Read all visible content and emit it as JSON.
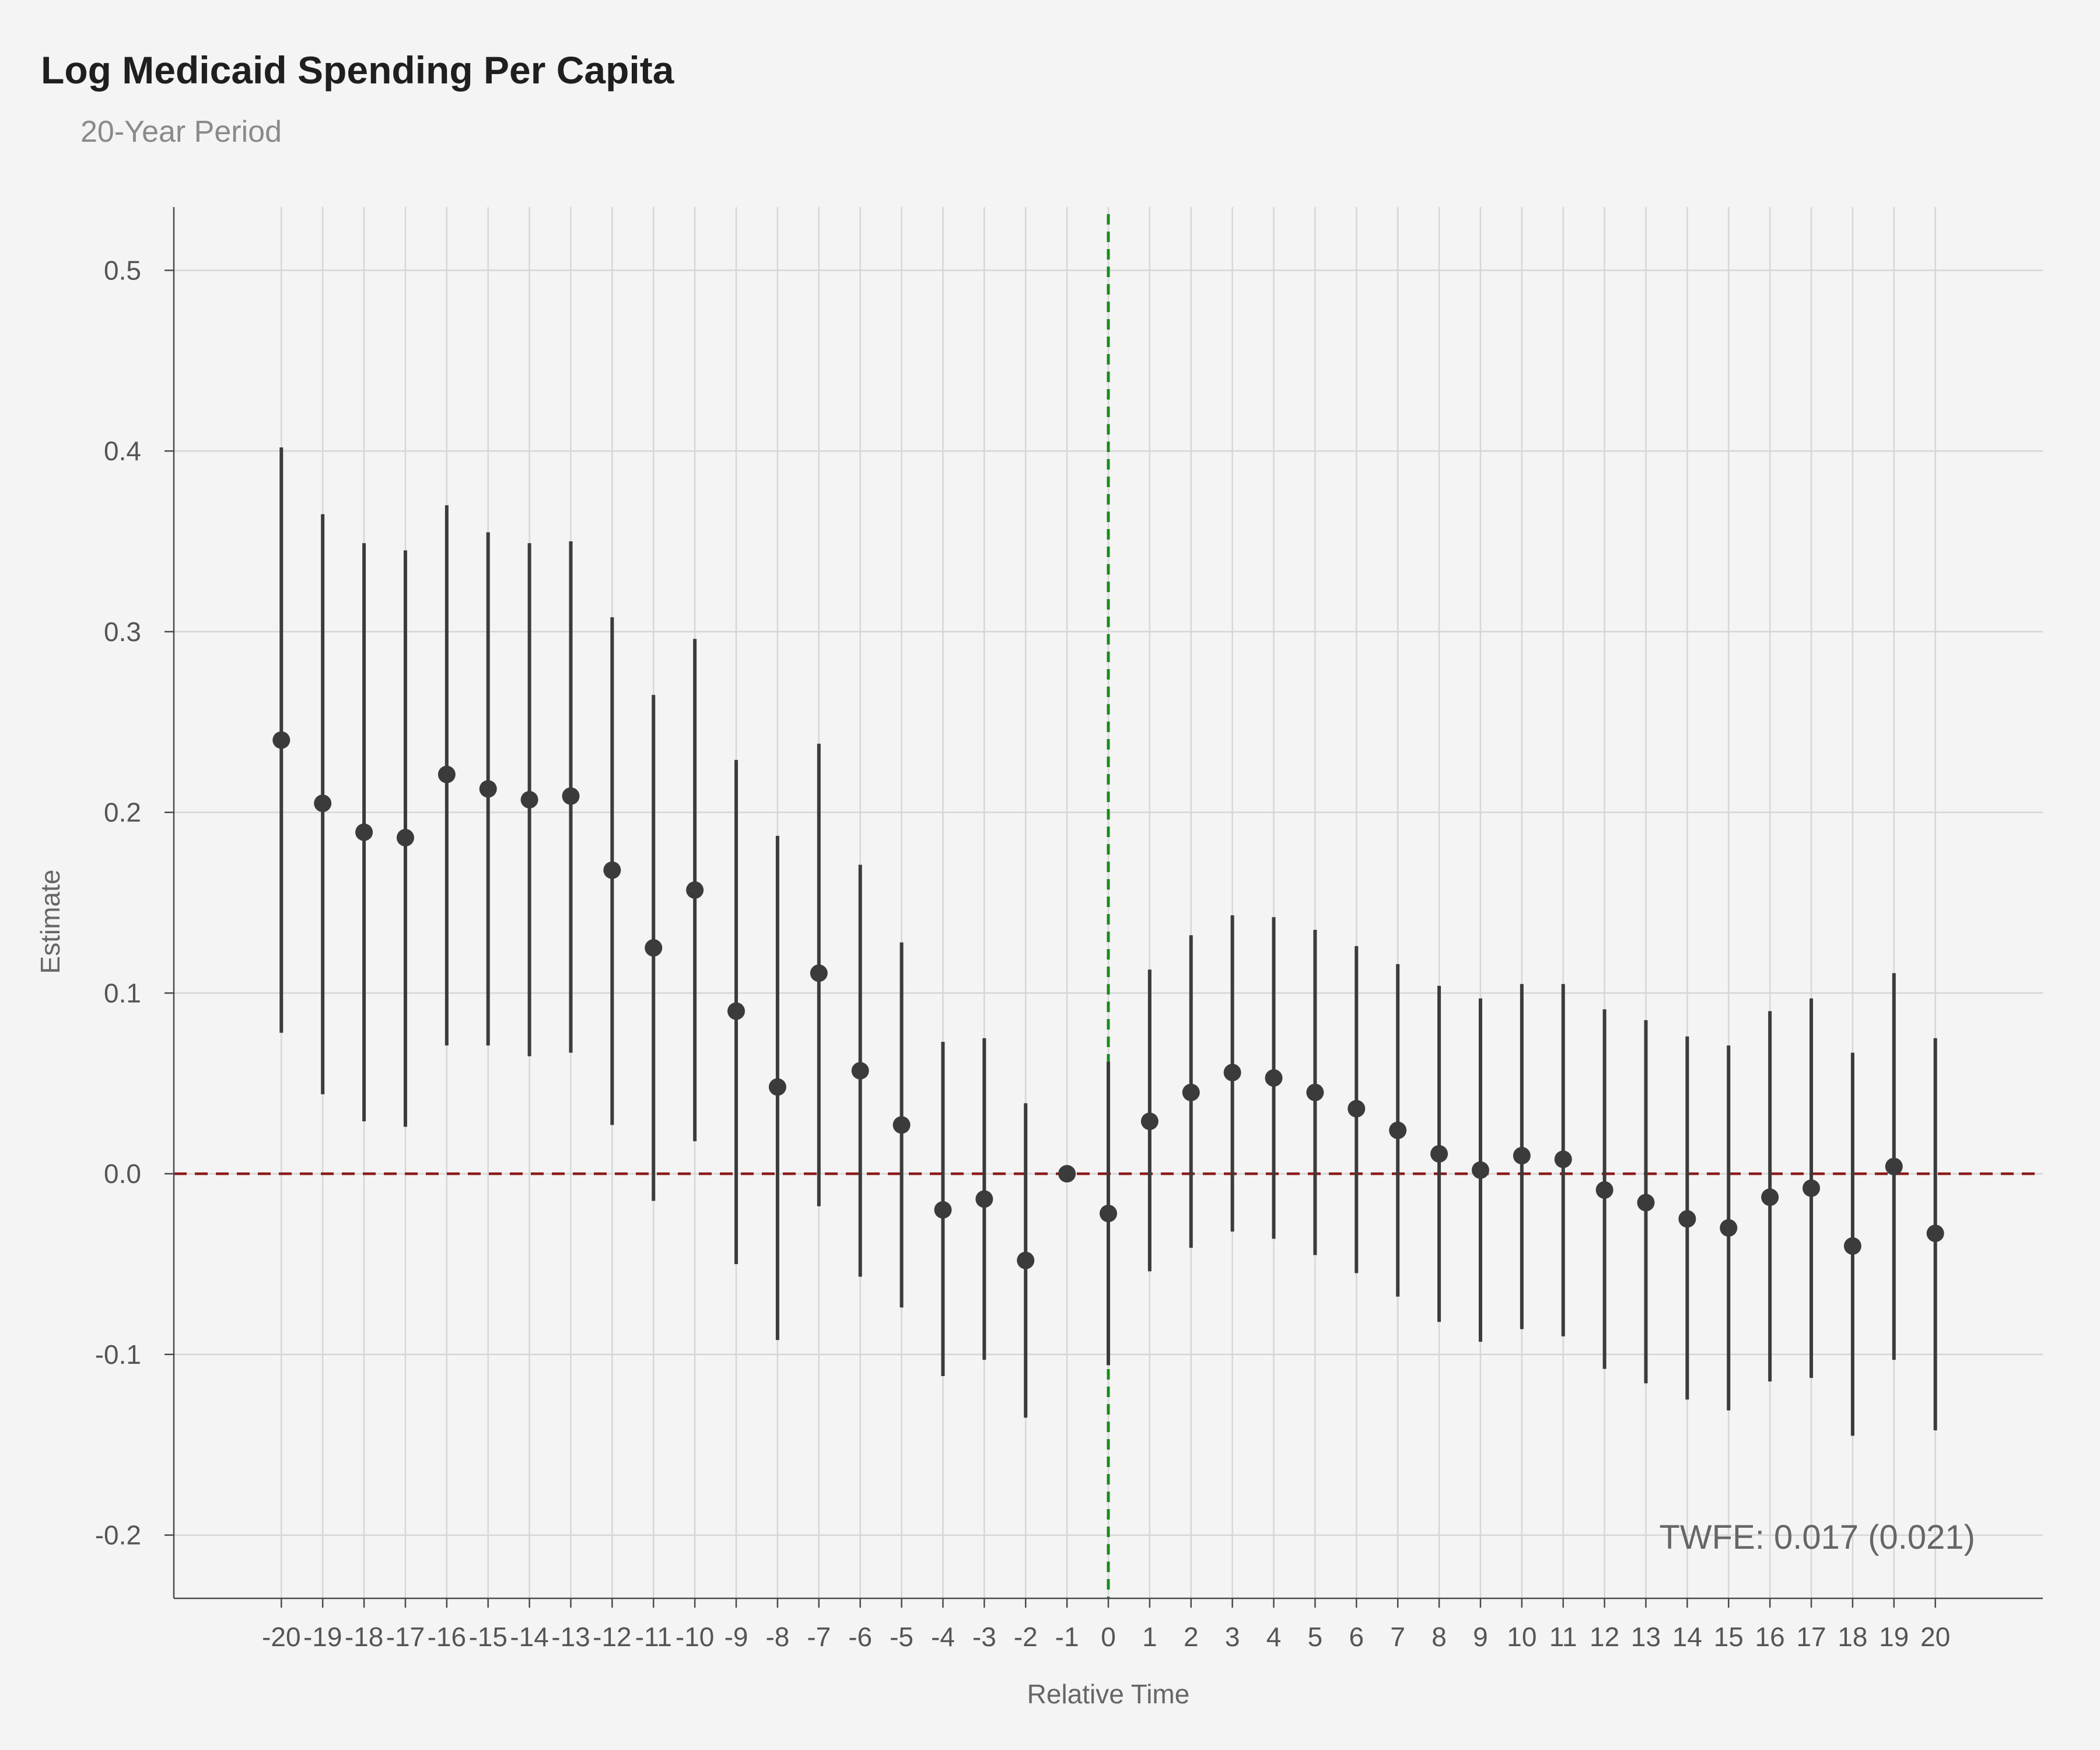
{
  "chart_data": {
    "type": "scatter",
    "title": "Log Medicaid Spending Per Capita",
    "subtitle": "20-Year Period",
    "xlabel": "Relative Time",
    "ylabel": "Estimate",
    "ylim": [
      -0.235,
      0.535
    ],
    "xlim": [
      -22.6,
      22.6
    ],
    "y_ticks": [
      -0.2,
      -0.1,
      0.0,
      0.1,
      0.2,
      0.3,
      0.4,
      0.5
    ],
    "y_tick_labels": [
      "-0.2",
      "-0.1",
      "0.0",
      "0.1",
      "0.2",
      "0.3",
      "0.4",
      "0.5"
    ],
    "x_ticks": [
      -20,
      -19,
      -18,
      -17,
      -16,
      -15,
      -14,
      -13,
      -12,
      -11,
      -10,
      -9,
      -8,
      -7,
      -6,
      -5,
      -4,
      -3,
      -2,
      -1,
      0,
      1,
      2,
      3,
      4,
      5,
      6,
      7,
      8,
      9,
      10,
      11,
      12,
      13,
      14,
      15,
      16,
      17,
      18,
      19,
      20
    ],
    "x_tick_labels": [
      "-20",
      "-19",
      "-18",
      "-17",
      "-16",
      "-15",
      "-14",
      "-13",
      "-12",
      "-11",
      "-10",
      "-9",
      "-8",
      "-7",
      "-6",
      "-5",
      "-4",
      "-3",
      "-2",
      "-1",
      "0",
      "1",
      "2",
      "3",
      "4",
      "5",
      "6",
      "7",
      "8",
      "9",
      "10",
      "11",
      "12",
      "13",
      "14",
      "15",
      "16",
      "17",
      "18",
      "19",
      "20"
    ],
    "grid": true,
    "series": [
      {
        "x": [
          -20,
          -19,
          -18,
          -17,
          -16,
          -15,
          -14,
          -13,
          -12,
          -11,
          -10,
          -9,
          -8,
          -7,
          -6,
          -5,
          -4,
          -3,
          -2,
          -1,
          0,
          1,
          2,
          3,
          4,
          5,
          6,
          7,
          8,
          9,
          10,
          11,
          12,
          13,
          14,
          15,
          16,
          17,
          18,
          19,
          20
        ],
        "estimate": [
          0.24,
          0.205,
          0.189,
          0.186,
          0.221,
          0.213,
          0.207,
          0.209,
          0.168,
          0.125,
          0.157,
          0.09,
          0.048,
          0.111,
          0.057,
          0.027,
          -0.02,
          -0.014,
          -0.048,
          0.0,
          -0.022,
          0.029,
          0.045,
          0.056,
          0.053,
          0.045,
          0.036,
          0.024,
          0.011,
          0.002,
          0.01,
          0.008,
          -0.009,
          -0.016,
          -0.025,
          -0.03,
          -0.013,
          -0.008,
          -0.04,
          0.004,
          -0.033
        ],
        "ci_low": [
          0.078,
          0.044,
          0.029,
          0.026,
          0.071,
          0.071,
          0.065,
          0.067,
          0.027,
          -0.015,
          0.018,
          -0.05,
          -0.092,
          -0.018,
          -0.057,
          -0.074,
          -0.112,
          -0.103,
          -0.135,
          0.0,
          -0.106,
          -0.054,
          -0.041,
          -0.032,
          -0.036,
          -0.045,
          -0.055,
          -0.068,
          -0.082,
          -0.093,
          -0.086,
          -0.09,
          -0.108,
          -0.116,
          -0.125,
          -0.131,
          -0.115,
          -0.113,
          -0.145,
          -0.103,
          -0.142
        ],
        "ci_high": [
          0.402,
          0.365,
          0.349,
          0.345,
          0.37,
          0.355,
          0.349,
          0.35,
          0.308,
          0.265,
          0.296,
          0.229,
          0.187,
          0.238,
          0.171,
          0.128,
          0.073,
          0.075,
          0.039,
          0.0,
          0.062,
          0.113,
          0.132,
          0.143,
          0.142,
          0.135,
          0.126,
          0.116,
          0.104,
          0.097,
          0.105,
          0.105,
          0.091,
          0.085,
          0.076,
          0.071,
          0.09,
          0.097,
          0.067,
          0.111,
          0.075
        ]
      }
    ],
    "reference_lines": {
      "horizontal_y": 0.0,
      "vertical_x": 0
    },
    "annotation": "TWFE: 0.017 (0.021)",
    "colors": {
      "background": "#f4f4f4",
      "grid": "#d6d6d6",
      "axis": "#4a4a4a",
      "point": "#3b3b3b",
      "zero_line": "#8b1a1a",
      "event_line": "#1a8a1a"
    }
  }
}
